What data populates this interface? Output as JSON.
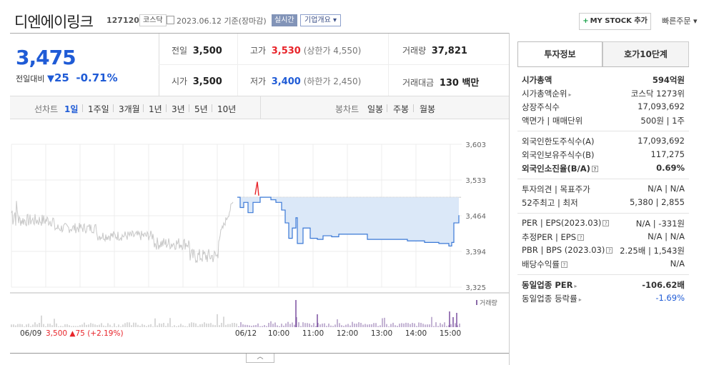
{
  "header": {
    "company": "디엔에이링크",
    "code": "127120",
    "market": "코스닥",
    "date": "2023.06.12 기준(장마감)",
    "realtime": "실시간",
    "overview": "기업개요 ▾",
    "mystock": "MY STOCK 추가",
    "quick_order": "빠른주문 ▾"
  },
  "quote": {
    "price": "3,475",
    "change_label": "전일대비",
    "change_icon": "down-triangle",
    "change": "25",
    "change_pct": "-0.71%",
    "rows": [
      {
        "l1": "전일",
        "v1": "3,500",
        "l2": "고가",
        "v2": "3,530",
        "v2_extra": "(상한가 4,550)",
        "l3": "거래량",
        "v3": "37,821"
      },
      {
        "l1": "시가",
        "v1": "3,500",
        "l2": "저가",
        "v2": "3,400",
        "v2_extra": "(하한가 2,450)",
        "l3": "거래대금",
        "v3": "130 백만"
      }
    ]
  },
  "period": {
    "line_label": "선차트",
    "line_tabs": [
      "1일",
      "1주일",
      "3개월",
      "1년",
      "3년",
      "5년",
      "10년"
    ],
    "line_selected": "1일",
    "candle_label": "봉차트",
    "candle_tabs": [
      "일봉",
      "주봉",
      "월봉"
    ]
  },
  "chart_data": {
    "type": "line",
    "y_ticks": [
      "3,603",
      "3,533",
      "3,464",
      "3,394",
      "3,325"
    ],
    "ylim": [
      3325,
      3603
    ],
    "x_ticks": [
      "06/09",
      "06/12",
      "10:00",
      "11:00",
      "12:00",
      "13:00",
      "14:00",
      "15:00"
    ],
    "prev_day_summary": {
      "date": "06/09",
      "price": "3,500",
      "change": "▲75",
      "pct": "(+2.19%)"
    },
    "volume_label": "거래량",
    "base_price": 3500,
    "colors": {
      "today_line": "#3a78d6",
      "fill": "#dbe8f8",
      "prev_line": "#c8c8c8",
      "up": "#e8242a"
    }
  },
  "invest": {
    "tabs": [
      "투자정보",
      "호가10단계"
    ],
    "groups": [
      [
        {
          "label": "시가총액",
          "value": "594억원",
          "bold": true
        },
        {
          "label": "시가총액순위",
          "value": "코스닥 1273위",
          "arrow": true
        },
        {
          "label": "상장주식수",
          "value": "17,093,692"
        },
        {
          "label": "액면가 | 매매단위",
          "value": "500원 | 1주"
        }
      ],
      [
        {
          "label": "외국인한도주식수(A)",
          "value": "17,093,692"
        },
        {
          "label": "외국인보유주식수(B)",
          "value": "117,275"
        },
        {
          "label": "외국인소진율(B/A)",
          "value": "0.69%",
          "bold": true,
          "q": true
        }
      ],
      [
        {
          "label": "투자의견 | 목표주가",
          "value": "N/A | N/A"
        },
        {
          "label": "52주최고 | 최저",
          "value": "5,380 | 2,855"
        }
      ],
      [
        {
          "label": "PER | EPS(2023.03)",
          "value": "N/A | -331원",
          "q": true
        },
        {
          "label": "추정PER | EPS",
          "value": "N/A | N/A",
          "q": true
        },
        {
          "label": "PBR | BPS (2023.03)",
          "value": "2.25배 | 1,543원",
          "q": true
        },
        {
          "label": "배당수익률",
          "value": "N/A",
          "q": true
        }
      ],
      [
        {
          "label": "동일업종 PER",
          "value": "-106.62배",
          "bold": true,
          "arrow": true
        },
        {
          "label": "동일업종 등락률",
          "value": "-1.69%",
          "arrow": true,
          "valueColor": "#1f5bd6"
        }
      ]
    ]
  }
}
